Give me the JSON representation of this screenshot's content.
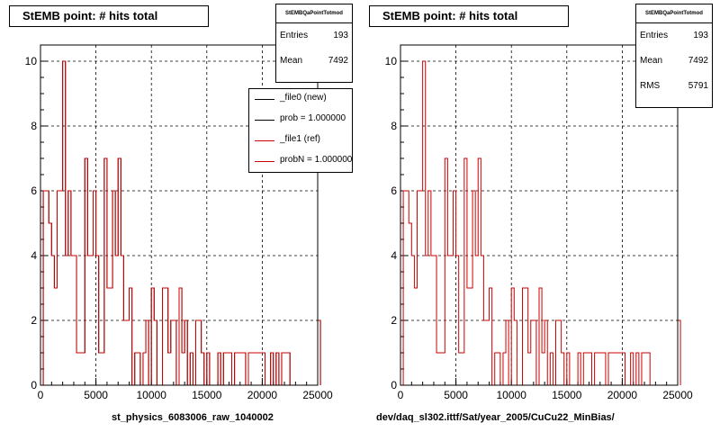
{
  "chart_data": [
    {
      "type": "histogram",
      "title": "StEMB point: # hits total",
      "xlabel": "st_physics_6083006_raw_1040002",
      "ylabel": "",
      "xlim": [
        0,
        25000
      ],
      "ylim": [
        0,
        10.5
      ],
      "xticks": [
        "0",
        "5000",
        "10000",
        "15000",
        "20000",
        "25000"
      ],
      "yticks": [
        "0",
        "2",
        "4",
        "6",
        "8",
        "10"
      ],
      "grid": true,
      "bin_width": 250,
      "series": [
        {
          "name": "_file1 (ref)",
          "color": "#cc0000",
          "x_start": 0,
          "values": [
            0,
            6,
            6,
            5,
            4,
            3,
            6,
            6,
            10,
            4,
            6,
            4,
            4,
            1,
            1,
            1,
            7,
            4,
            4,
            6,
            4,
            1,
            1,
            7,
            3,
            3,
            6,
            4,
            7,
            4,
            2,
            2,
            3,
            0,
            1,
            1,
            0,
            1,
            2,
            0,
            3,
            2,
            0,
            0,
            3,
            3,
            1,
            2,
            2,
            0,
            3,
            1,
            2,
            0,
            1,
            0,
            2,
            2,
            1,
            0,
            1,
            0,
            0,
            0,
            1,
            0,
            1,
            1,
            1,
            0,
            1,
            1,
            1,
            1,
            0,
            1,
            1,
            1,
            1,
            1,
            1,
            0,
            0,
            1,
            0,
            1,
            0,
            1,
            1,
            1,
            0,
            0,
            0,
            0,
            0,
            0,
            0,
            0,
            0,
            0,
            2
          ]
        },
        {
          "name": "_file0 (new)",
          "color": "#000000",
          "x_start": 0,
          "values": [
            0,
            6,
            6,
            5,
            4,
            3,
            6,
            6,
            10,
            4,
            6,
            4,
            4,
            1,
            1,
            1,
            7,
            4,
            4,
            6,
            4,
            1,
            1,
            7,
            3,
            3,
            6,
            4,
            7,
            4,
            2,
            2,
            3,
            0,
            1,
            1,
            0,
            1,
            2,
            0,
            3,
            2,
            0,
            0,
            3,
            3,
            1,
            2,
            2,
            0,
            3,
            1,
            2,
            0,
            1,
            0,
            2,
            2,
            1,
            0,
            1,
            0,
            0,
            0,
            1,
            0,
            1,
            1,
            1,
            0,
            1,
            1,
            1,
            1,
            0,
            1,
            1,
            1,
            1,
            1,
            1,
            0,
            0,
            1,
            0,
            1,
            0,
            1,
            1,
            1,
            0,
            0,
            0,
            0,
            0,
            0,
            0,
            0,
            0,
            0,
            2
          ]
        }
      ],
      "stats": {
        "name": "StEMBQaPointTotmod",
        "rows": [
          {
            "label": "Entries",
            "value": "193"
          },
          {
            "label": "Mean",
            "value": "7492"
          }
        ]
      },
      "legend": {
        "placement": "top-right",
        "entries": [
          {
            "label": "_file0 (new)",
            "color": "#000000"
          },
          {
            "label": "prob = 1.000000",
            "color": "#000000"
          },
          {
            "label": "_file1 (ref)",
            "color": "#cc0000"
          },
          {
            "label": "probN = 1.000000",
            "color": "#cc0000"
          }
        ]
      }
    },
    {
      "type": "histogram",
      "title": "StEMB point: # hits total",
      "xlabel": "dev/daq_sl302.ittf/Sat/year_2005/CuCu22_MinBias/",
      "ylabel": "",
      "xlim": [
        0,
        25000
      ],
      "ylim": [
        0,
        10.5
      ],
      "xticks": [
        "0",
        "5000",
        "10000",
        "15000",
        "20000",
        "25000"
      ],
      "yticks": [
        "0",
        "2",
        "4",
        "6",
        "8",
        "10"
      ],
      "grid": true,
      "bin_width": 250,
      "series": [
        {
          "name": "",
          "color": "#cc0000",
          "x_start": 0,
          "values": [
            0,
            6,
            6,
            5,
            4,
            3,
            6,
            6,
            10,
            4,
            6,
            4,
            4,
            1,
            1,
            1,
            7,
            4,
            4,
            6,
            4,
            1,
            1,
            7,
            3,
            3,
            6,
            4,
            7,
            4,
            2,
            2,
            3,
            0,
            1,
            1,
            0,
            1,
            2,
            0,
            3,
            2,
            0,
            0,
            3,
            3,
            1,
            2,
            2,
            0,
            3,
            1,
            2,
            0,
            1,
            0,
            2,
            2,
            1,
            0,
            1,
            0,
            0,
            0,
            1,
            0,
            1,
            1,
            1,
            0,
            1,
            1,
            1,
            1,
            0,
            1,
            1,
            1,
            1,
            1,
            1,
            0,
            0,
            1,
            0,
            1,
            0,
            1,
            1,
            1,
            0,
            0,
            0,
            0,
            0,
            0,
            0,
            0,
            0,
            0,
            2
          ]
        }
      ],
      "stats": {
        "name": "StEMBQaPointTotmod",
        "rows": [
          {
            "label": "Entries",
            "value": "193"
          },
          {
            "label": "Mean",
            "value": "7492"
          },
          {
            "label": "RMS",
            "value": "5791"
          }
        ]
      },
      "legend": null
    }
  ]
}
